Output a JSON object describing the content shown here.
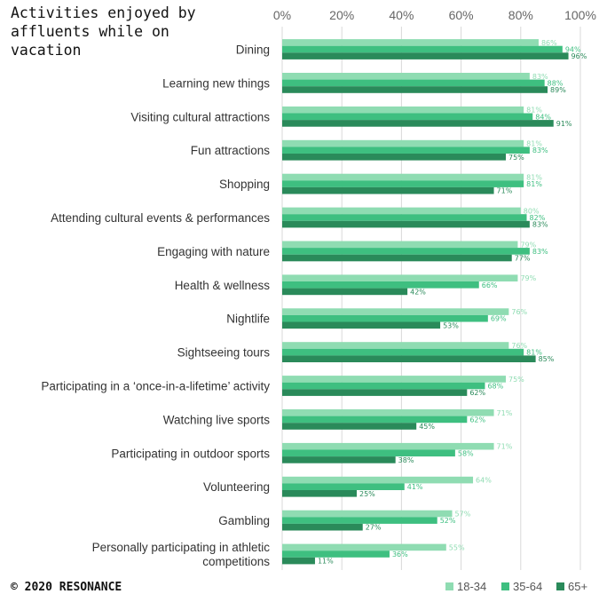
{
  "title": "Activities enjoyed by affluents while on vacation",
  "footer": {
    "copyright": "© 2020 RESONANCE"
  },
  "colors": {
    "18-34": "#8fdcb2",
    "35-64": "#3ebf80",
    "65+": "#2a8a5a",
    "grid": "#d9d9d9"
  },
  "chart_data": {
    "type": "bar",
    "orientation": "horizontal",
    "title": "Activities enjoyed by affluents while on vacation",
    "xlim": [
      0,
      100
    ],
    "x_ticks": [
      "0%",
      "20%",
      "40%",
      "60%",
      "80%",
      "100%"
    ],
    "x_tick_values": [
      0,
      20,
      40,
      60,
      80,
      100
    ],
    "x_axis_position": "top",
    "grid": true,
    "legend_position": "bottom-right",
    "categories": [
      "Dining",
      "Learning new things",
      "Visiting cultural attractions",
      "Fun attractions",
      "Shopping",
      "Attending cultural events & performances",
      "Engaging with nature",
      "Health & wellness",
      "Nightlife",
      "Sightseeing tours",
      "Participating in a ‘once-in-a-lifetime’ activity",
      "Watching live sports",
      "Participating in outdoor sports",
      "Volunteering",
      "Gambling",
      "Personally participating in athletic competitions"
    ],
    "series": [
      {
        "name": "18-34",
        "values": [
          86,
          83,
          81,
          81,
          81,
          80,
          79,
          79,
          76,
          76,
          75,
          71,
          71,
          64,
          57,
          55
        ]
      },
      {
        "name": "35-64",
        "values": [
          94,
          88,
          84,
          83,
          81,
          82,
          83,
          66,
          69,
          81,
          68,
          62,
          58,
          41,
          52,
          36
        ]
      },
      {
        "name": "65+",
        "values": [
          96,
          89,
          91,
          75,
          71,
          83,
          77,
          42,
          53,
          85,
          62,
          45,
          38,
          25,
          27,
          11
        ]
      }
    ]
  }
}
